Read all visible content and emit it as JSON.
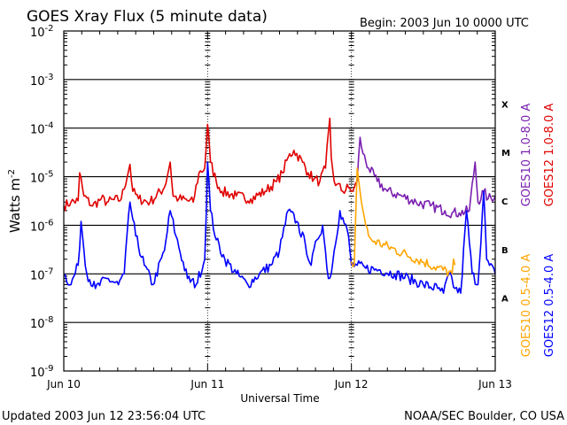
{
  "chart_data": {
    "type": "line",
    "title": "GOES Xray Flux (5 minute data)",
    "begin_label": "Begin:  2003 Jun 10 0000 UTC",
    "ylabel_main": "Watts m",
    "ylabel_sup": "-2",
    "xlabel": "Universal Time",
    "y_scale": "log",
    "ylim": [
      1e-09,
      0.01
    ],
    "grid": true,
    "yticks": [
      {
        "mantissa": "10",
        "exp": "-2"
      },
      {
        "mantissa": "10",
        "exp": "-3"
      },
      {
        "mantissa": "10",
        "exp": "-4"
      },
      {
        "mantissa": "10",
        "exp": "-5"
      },
      {
        "mantissa": "10",
        "exp": "-6"
      },
      {
        "mantissa": "10",
        "exp": "-7"
      },
      {
        "mantissa": "10",
        "exp": "-8"
      },
      {
        "mantissa": "10",
        "exp": "-9"
      }
    ],
    "x_range_days": [
      0,
      3
    ],
    "xticks": [
      "Jun 10",
      "Jun 11",
      "Jun 12",
      "Jun 13"
    ],
    "flare_classes": [
      {
        "label": "X",
        "log_center": -3.5
      },
      {
        "label": "M",
        "log_center": -4.5
      },
      {
        "label": "C",
        "log_center": -5.5
      },
      {
        "label": "B",
        "log_center": -6.5
      },
      {
        "label": "A",
        "log_center": -7.5
      }
    ],
    "legend": [
      {
        "text": "GOES10 1.0-8.0 A",
        "color": "#7a1fb0"
      },
      {
        "text": "GOES12 1.0-8.0 A",
        "color": "#e00000"
      },
      {
        "text": "GOES10 0.5-4.0 A",
        "color": "#ffa500"
      },
      {
        "text": "GOES12 0.5-4.0 A",
        "color": "#0000ff"
      }
    ],
    "series": [
      {
        "name": "GOES12 1.0-8.0 A",
        "color": "#e00000",
        "t": [
          0.0,
          0.05,
          0.1,
          0.11,
          0.14,
          0.2,
          0.26,
          0.3,
          0.4,
          0.46,
          0.48,
          0.52,
          0.6,
          0.7,
          0.74,
          0.76,
          0.8,
          0.9,
          0.94,
          0.98,
          1.0,
          1.02,
          1.06,
          1.1,
          1.2,
          1.3,
          1.4,
          1.48,
          1.52,
          1.56,
          1.6,
          1.66,
          1.7,
          1.74,
          1.78,
          1.82,
          1.85,
          1.86,
          1.88,
          1.9,
          1.94,
          1.98,
          2.0,
          2.02,
          2.04
        ],
        "v": [
          2.5e-06,
          3e-06,
          3.2e-06,
          1.2e-05,
          4e-06,
          2.5e-06,
          3.5e-06,
          3e-06,
          3.5e-06,
          1.8e-05,
          5e-06,
          3.5e-06,
          3e-06,
          6e-06,
          2e-05,
          4e-06,
          3.5e-06,
          3e-06,
          1.2e-05,
          1.5e-05,
          0.00012,
          2e-05,
          8e-06,
          5e-06,
          4e-06,
          3.5e-06,
          5e-06,
          8e-06,
          1.2e-05,
          2.5e-05,
          3.5e-05,
          2e-05,
          1.2e-05,
          9e-06,
          8e-06,
          1.5e-05,
          0.00016,
          2.5e-05,
          8e-06,
          7e-06,
          5e-06,
          6e-06,
          5e-06,
          6e-06,
          8e-06
        ]
      },
      {
        "name": "GOES10 1.0-8.0 A",
        "color": "#7a1fb0",
        "t": [
          2.04,
          2.06,
          2.08,
          2.12,
          2.18,
          2.25,
          2.35,
          2.45,
          2.55,
          2.65,
          2.7,
          2.75,
          2.82,
          2.86,
          2.88,
          2.92,
          2.95,
          3.0
        ],
        "v": [
          8e-06,
          6.5e-05,
          3e-05,
          1.5e-05,
          8e-06,
          5e-06,
          4e-06,
          3e-06,
          2.5e-06,
          2e-06,
          1.8e-06,
          1.8e-06,
          2e-06,
          2e-05,
          3e-06,
          5e-06,
          3.5e-06,
          4e-06
        ]
      },
      {
        "name": "GOES12 0.5-4.0 A",
        "color": "#0000ff",
        "t": [
          0.0,
          0.05,
          0.1,
          0.12,
          0.16,
          0.22,
          0.3,
          0.38,
          0.42,
          0.46,
          0.5,
          0.56,
          0.62,
          0.7,
          0.74,
          0.78,
          0.86,
          0.92,
          0.98,
          1.0,
          1.02,
          1.06,
          1.12,
          1.2,
          1.28,
          1.36,
          1.44,
          1.5,
          1.56,
          1.62,
          1.68,
          1.72,
          1.76,
          1.8,
          1.84,
          1.86,
          1.88,
          1.92,
          1.98,
          2.0,
          2.04,
          2.1,
          2.2,
          2.3,
          2.4,
          2.5,
          2.6,
          2.64,
          2.68,
          2.72,
          2.76,
          2.8,
          2.84,
          2.88,
          2.92,
          2.94,
          2.96,
          3.0
        ],
        "v": [
          1e-07,
          6e-08,
          1.5e-07,
          1.2e-06,
          1e-07,
          5e-08,
          8e-08,
          6e-08,
          1e-07,
          3e-06,
          6e-07,
          1.5e-07,
          6e-08,
          3e-07,
          2e-06,
          6e-07,
          8e-08,
          6e-08,
          2e-07,
          2e-05,
          2e-06,
          5e-07,
          2e-07,
          1e-07,
          6e-08,
          1e-07,
          1.5e-07,
          3e-07,
          2e-06,
          1.2e-06,
          4e-07,
          1.5e-07,
          5e-07,
          1e-06,
          8e-08,
          1e-07,
          3e-07,
          2e-06,
          6e-07,
          1.5e-07,
          1.5e-07,
          1.3e-07,
          1.2e-07,
          1e-07,
          8e-08,
          6e-08,
          5e-08,
          4e-08,
          1e-07,
          5e-08,
          4e-08,
          2e-06,
          1e-07,
          6e-08,
          5e-06,
          2e-07,
          1.5e-07,
          1e-07
        ]
      },
      {
        "name": "GOES10 0.5-4.0 A",
        "color": "#ffa500",
        "t": [
          2.0,
          2.02,
          2.04,
          2.06,
          2.08,
          2.1,
          2.12,
          2.14,
          2.7,
          2.71,
          2.72
        ],
        "v": [
          1.8e-07,
          1.5e-07,
          1.5e-05,
          5e-06,
          2e-06,
          1e-06,
          6e-07,
          5e-07,
          1e-07,
          2e-07,
          1.5e-07
        ]
      }
    ]
  },
  "footer": {
    "updated": "Updated 2003 Jun 12 23:56:04 UTC",
    "credit": "NOAA/SEC Boulder, CO USA"
  }
}
